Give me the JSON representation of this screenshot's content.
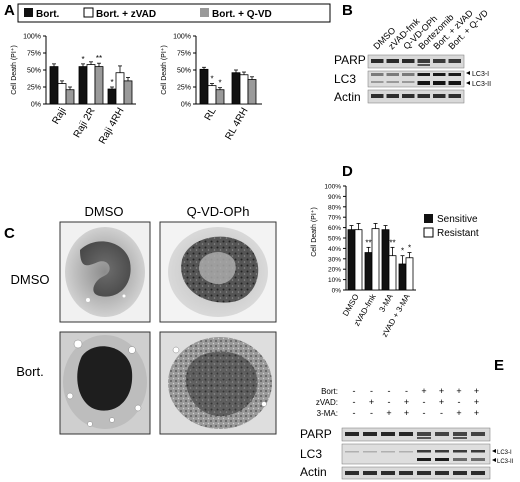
{
  "panels": {
    "A": {
      "label": "A",
      "legend": [
        "Bort.",
        "Bort. + zVAD",
        "Bort. + Q-VD"
      ],
      "ylabel": "Cell Death (PI⁺)",
      "ticks": [
        "0%",
        "25%",
        "50%",
        "75%",
        "100%"
      ],
      "left_categories": [
        "Raji",
        "Raji 2R",
        "Raji 4RH"
      ],
      "right_categories": [
        "RL",
        "RL 4RH"
      ]
    },
    "B": {
      "label": "B",
      "lanes": [
        "DMSO",
        "zVAD-fmk",
        "Q-VD-OPh",
        "Bortezomib",
        "Bort. + zVAD",
        "Bort. + Q-VD"
      ],
      "rows": [
        "PARP",
        "LC3",
        "Actin"
      ],
      "markers": [
        "LC3-I",
        "LC3-II"
      ]
    },
    "C": {
      "label": "C",
      "cols": [
        "DMSO",
        "Q-VD-OPh"
      ],
      "rows": [
        "DMSO",
        "Bort."
      ]
    },
    "D": {
      "label": "D",
      "ylabel": "Cell Death (PI⁺)",
      "ticks": [
        "0%",
        "10%",
        "20%",
        "30%",
        "40%",
        "50%",
        "60%",
        "70%",
        "80%",
        "90%",
        "100%"
      ],
      "categories": [
        "DMSO",
        "zVAD-fmk",
        "3-MA",
        "zVAD + 3-MA"
      ],
      "legend": [
        "Sensitive",
        "Resistant"
      ]
    },
    "E": {
      "label": "E",
      "treatments": [
        {
          "name": "Bort:",
          "signs": [
            "-",
            "-",
            "-",
            "-",
            "+",
            "+",
            "+",
            "+"
          ]
        },
        {
          "name": "zVAD:",
          "signs": [
            "-",
            "+",
            "-",
            "+",
            "-",
            "+",
            "-",
            "+"
          ]
        },
        {
          "name": "3-MA:",
          "signs": [
            "-",
            "-",
            "+",
            "+",
            "-",
            "-",
            "+",
            "+"
          ]
        }
      ],
      "rows": [
        "PARP",
        "LC3",
        "Actin"
      ],
      "markers": [
        "LC3-I",
        "LC3-II"
      ]
    }
  },
  "chart_data": [
    {
      "type": "bar",
      "panel": "A-left",
      "categories": [
        "Raji",
        "Raji 2R",
        "Raji 4RH"
      ],
      "series": [
        {
          "name": "Bort.",
          "values": [
            55,
            55,
            22
          ]
        },
        {
          "name": "Bort. + zVAD",
          "values": [
            30,
            58,
            46
          ]
        },
        {
          "name": "Bort. + Q-VD",
          "values": [
            21,
            55,
            34
          ]
        }
      ],
      "errors": [
        [
          4,
          4,
          3
        ],
        [
          4,
          4,
          10
        ],
        [
          4,
          5,
          5
        ]
      ],
      "significance": [
        [
          "",
          "*",
          "*"
        ],
        [
          "",
          "",
          ""
        ],
        [
          "",
          "**",
          ""
        ]
      ],
      "ylim": [
        0,
        100
      ],
      "ylabel": "Cell Death (PI⁺)"
    },
    {
      "type": "bar",
      "panel": "A-right",
      "categories": [
        "RL",
        "RL 4RH"
      ],
      "series": [
        {
          "name": "Bort.",
          "values": [
            51,
            46
          ]
        },
        {
          "name": "Bort. + zVAD",
          "values": [
            27,
            43
          ]
        },
        {
          "name": "Bort. + Q-VD",
          "values": [
            21,
            36
          ]
        }
      ],
      "errors": [
        [
          3,
          4
        ],
        [
          3,
          4
        ],
        [
          3,
          4
        ]
      ],
      "significance": [
        [
          "",
          ""
        ],
        [
          "*",
          ""
        ],
        [
          "*",
          ""
        ]
      ],
      "ylim": [
        0,
        100
      ],
      "ylabel": "Cell Death (PI⁺)"
    },
    {
      "type": "bar",
      "panel": "D",
      "categories": [
        "DMSO",
        "zVAD-fmk",
        "3-MA",
        "zVAD + 3-MA"
      ],
      "series": [
        {
          "name": "Sensitive",
          "values": [
            58,
            36,
            58,
            25
          ]
        },
        {
          "name": "Resistant",
          "values": [
            58,
            59,
            33,
            31
          ]
        }
      ],
      "errors": [
        [
          4,
          5,
          4,
          8
        ],
        [
          6,
          5,
          8,
          5
        ]
      ],
      "significance": [
        [
          "",
          "**",
          "",
          "*"
        ],
        [
          "",
          "",
          "**",
          "*"
        ]
      ],
      "ylim": [
        0,
        100
      ],
      "ylabel": "Cell Death (PI⁺)"
    }
  ],
  "colors": {
    "black": "#111111",
    "white": "#ffffff",
    "gray": "#9a9a9a"
  }
}
